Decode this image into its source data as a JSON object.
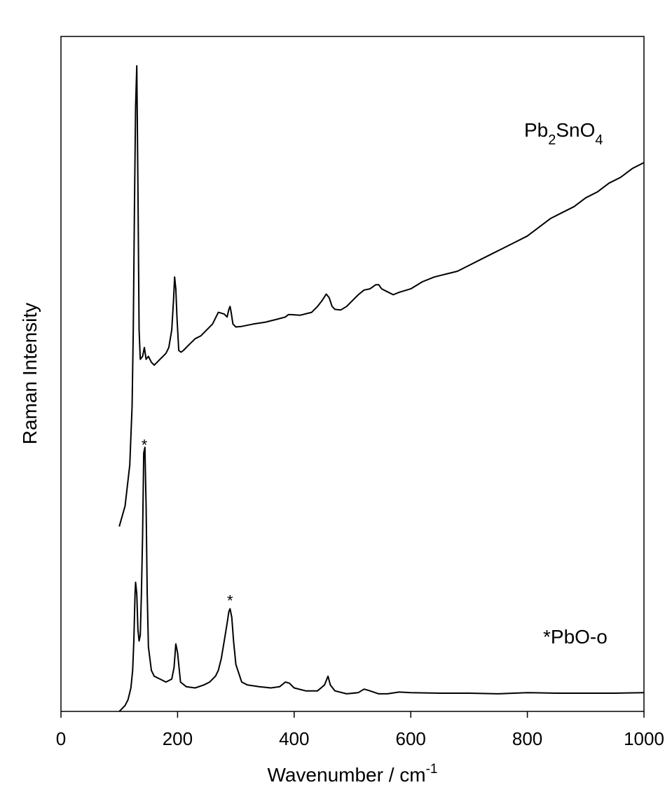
{
  "chart_data": {
    "type": "line",
    "xlabel": "Wavenumber / cm",
    "xlabel_superscript": "-1",
    "ylabel": "Raman Intensity",
    "xlim": [
      0,
      1000
    ],
    "ylim": [
      0,
      1.15
    ],
    "x_ticks": [
      0,
      200,
      400,
      600,
      800,
      1000
    ],
    "y_ticks_shown": false,
    "grid": false,
    "line_color": "#000000",
    "series": [
      {
        "name": "Pb2SnO4",
        "label_parts": [
          {
            "text": "Pb",
            "sub": false
          },
          {
            "text": "2",
            "sub": true
          },
          {
            "text": "SnO",
            "sub": false
          },
          {
            "text": "4",
            "sub": true
          }
        ],
        "x": [
          100,
          110,
          118,
          122,
          124,
          126,
          128,
          130,
          132,
          134,
          136,
          140,
          143,
          146,
          150,
          155,
          160,
          165,
          170,
          175,
          180,
          185,
          190,
          193,
          195,
          197,
          199,
          202,
          206,
          210,
          220,
          230,
          240,
          250,
          260,
          270,
          280,
          285,
          288,
          290,
          292,
          295,
          300,
          310,
          330,
          350,
          370,
          385,
          390,
          395,
          410,
          430,
          440,
          448,
          455,
          460,
          465,
          470,
          480,
          490,
          500,
          510,
          520,
          530,
          540,
          545,
          550,
          560,
          570,
          580,
          600,
          620,
          640,
          660,
          680,
          700,
          720,
          740,
          760,
          780,
          800,
          820,
          840,
          860,
          880,
          900,
          920,
          940,
          960,
          980,
          1000
        ],
        "y": [
          0.315,
          0.35,
          0.42,
          0.52,
          0.65,
          0.85,
          1.03,
          1.1,
          0.9,
          0.65,
          0.6,
          0.605,
          0.62,
          0.6,
          0.605,
          0.595,
          0.59,
          0.595,
          0.6,
          0.605,
          0.61,
          0.62,
          0.65,
          0.7,
          0.74,
          0.72,
          0.67,
          0.615,
          0.612,
          0.615,
          0.625,
          0.635,
          0.64,
          0.65,
          0.66,
          0.68,
          0.677,
          0.672,
          0.685,
          0.69,
          0.68,
          0.66,
          0.655,
          0.656,
          0.66,
          0.663,
          0.668,
          0.672,
          0.676,
          0.676,
          0.675,
          0.68,
          0.69,
          0.7,
          0.711,
          0.705,
          0.69,
          0.685,
          0.684,
          0.69,
          0.7,
          0.71,
          0.718,
          0.72,
          0.727,
          0.727,
          0.72,
          0.715,
          0.71,
          0.714,
          0.72,
          0.732,
          0.74,
          0.745,
          0.75,
          0.76,
          0.77,
          0.78,
          0.79,
          0.8,
          0.81,
          0.825,
          0.84,
          0.85,
          0.86,
          0.875,
          0.885,
          0.9,
          0.91,
          0.925,
          0.935
        ]
      },
      {
        "name": "*PbO-o",
        "x": [
          100,
          105,
          110,
          115,
          120,
          123,
          125,
          127,
          128,
          130,
          132,
          134,
          136,
          138,
          140,
          142,
          144,
          146,
          148,
          150,
          155,
          160,
          170,
          180,
          190,
          194,
          197,
          200,
          205,
          215,
          230,
          245,
          255,
          265,
          270,
          275,
          280,
          285,
          288,
          290,
          293,
          296,
          300,
          310,
          320,
          340,
          360,
          375,
          385,
          392,
          400,
          420,
          440,
          452,
          458,
          462,
          470,
          490,
          510,
          520,
          530,
          545,
          560,
          580,
          600,
          650,
          700,
          750,
          800,
          850,
          900,
          950,
          1000
        ],
        "y": [
          0.0,
          0.005,
          0.01,
          0.02,
          0.04,
          0.07,
          0.12,
          0.2,
          0.22,
          0.2,
          0.14,
          0.12,
          0.13,
          0.2,
          0.3,
          0.44,
          0.45,
          0.35,
          0.2,
          0.11,
          0.07,
          0.06,
          0.055,
          0.05,
          0.055,
          0.075,
          0.115,
          0.1,
          0.05,
          0.042,
          0.04,
          0.045,
          0.05,
          0.06,
          0.07,
          0.09,
          0.12,
          0.15,
          0.17,
          0.175,
          0.16,
          0.12,
          0.08,
          0.05,
          0.045,
          0.042,
          0.04,
          0.042,
          0.05,
          0.048,
          0.04,
          0.035,
          0.035,
          0.045,
          0.06,
          0.045,
          0.035,
          0.03,
          0.032,
          0.038,
          0.035,
          0.03,
          0.03,
          0.033,
          0.032,
          0.031,
          0.031,
          0.03,
          0.032,
          0.031,
          0.031,
          0.031,
          0.032
        ]
      }
    ],
    "annotations": [
      {
        "text": "*",
        "x": 143,
        "series": 1
      },
      {
        "text": "*",
        "x": 290,
        "series": 1
      }
    ]
  }
}
